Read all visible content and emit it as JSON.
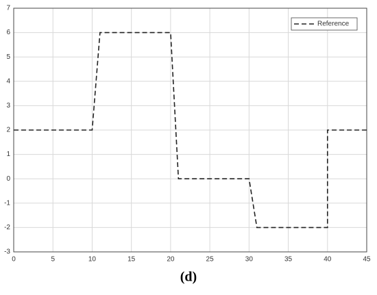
{
  "chart_data": {
    "type": "line",
    "caption": "(d)",
    "x": [
      0,
      10,
      11,
      20,
      21,
      30,
      31,
      40,
      40,
      45
    ],
    "series": [
      {
        "name": "Reference",
        "color": "#222222",
        "values": [
          2,
          2,
          6,
          6,
          0,
          0,
          -2,
          -2,
          2,
          2
        ]
      }
    ],
    "xlim": [
      0,
      45
    ],
    "xticks": [
      0,
      5,
      10,
      15,
      20,
      25,
      30,
      35,
      40,
      45
    ],
    "ylim": [
      -3,
      7
    ],
    "yticks": [
      -3,
      -2,
      -1,
      0,
      1,
      2,
      3,
      4,
      5,
      6,
      7
    ],
    "grid": true,
    "legend": "top-right",
    "dashed": true
  }
}
